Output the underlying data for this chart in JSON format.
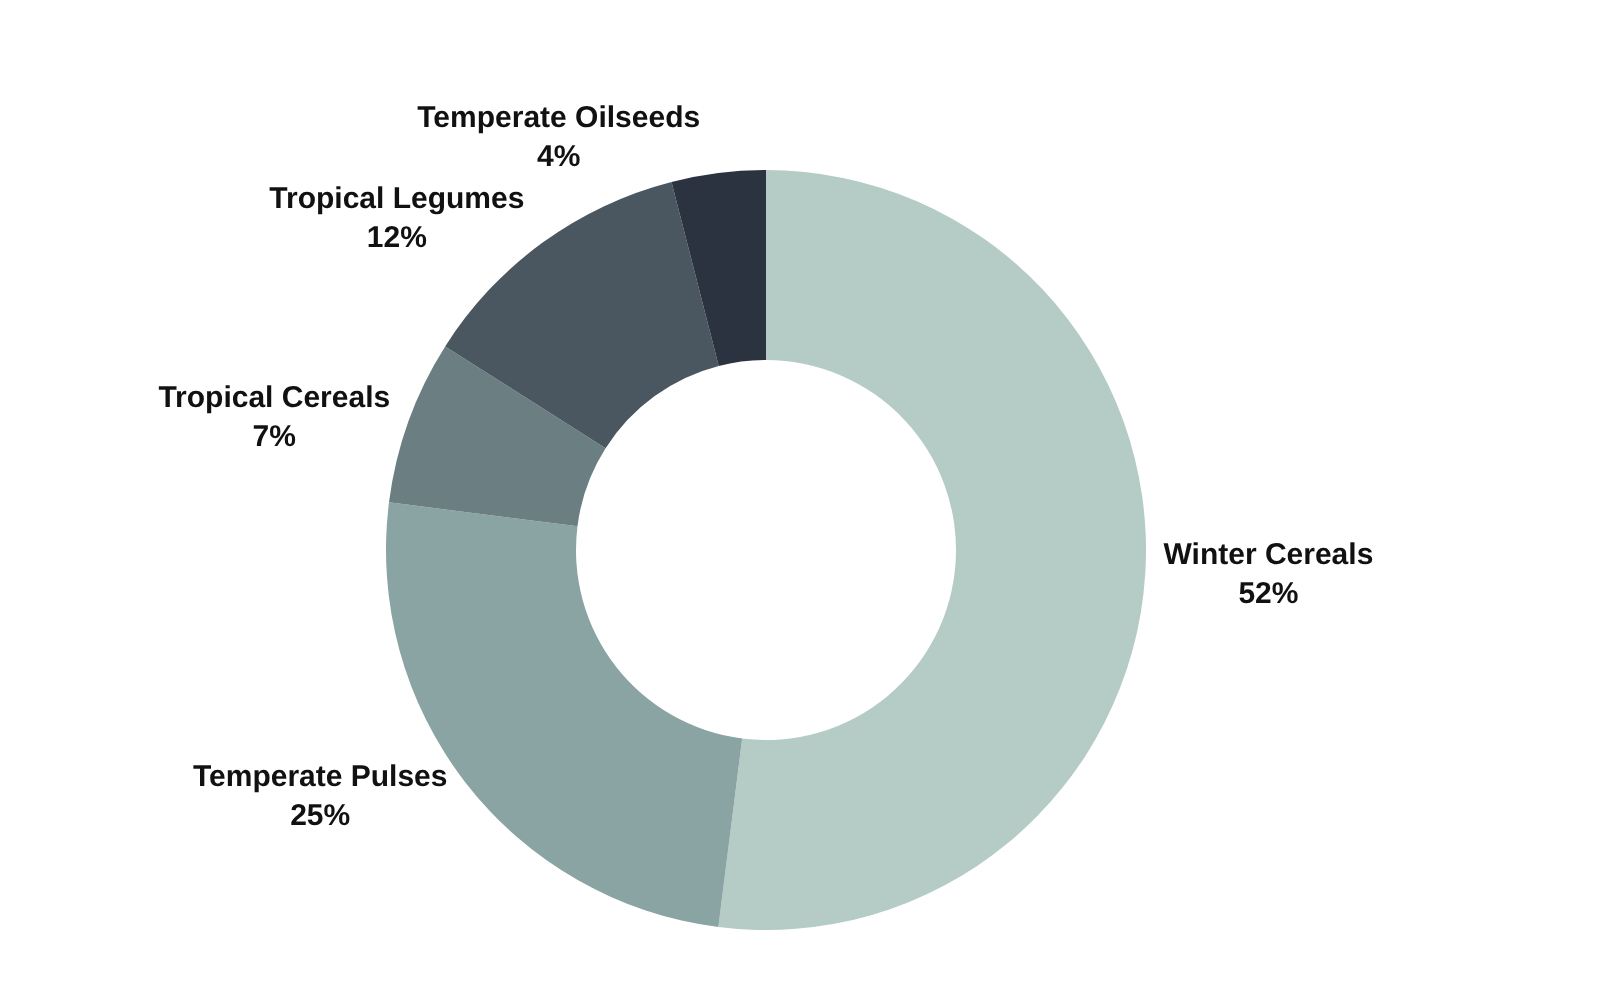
{
  "chart_data": {
    "type": "donut",
    "categories": [
      "Winter Cereals",
      "Temperate Pulses",
      "Tropical Cereals",
      "Tropical Legumes",
      "Temperate Oilseeds"
    ],
    "values": [
      52,
      25,
      7,
      12,
      4
    ],
    "value_labels": [
      "52%",
      "25%",
      "7%",
      "12%",
      "4%"
    ],
    "colors": [
      "#b5cbc5",
      "#8aa3a3",
      "#6b7f82",
      "#4a5761",
      "#2b3340"
    ],
    "legend": false
  }
}
